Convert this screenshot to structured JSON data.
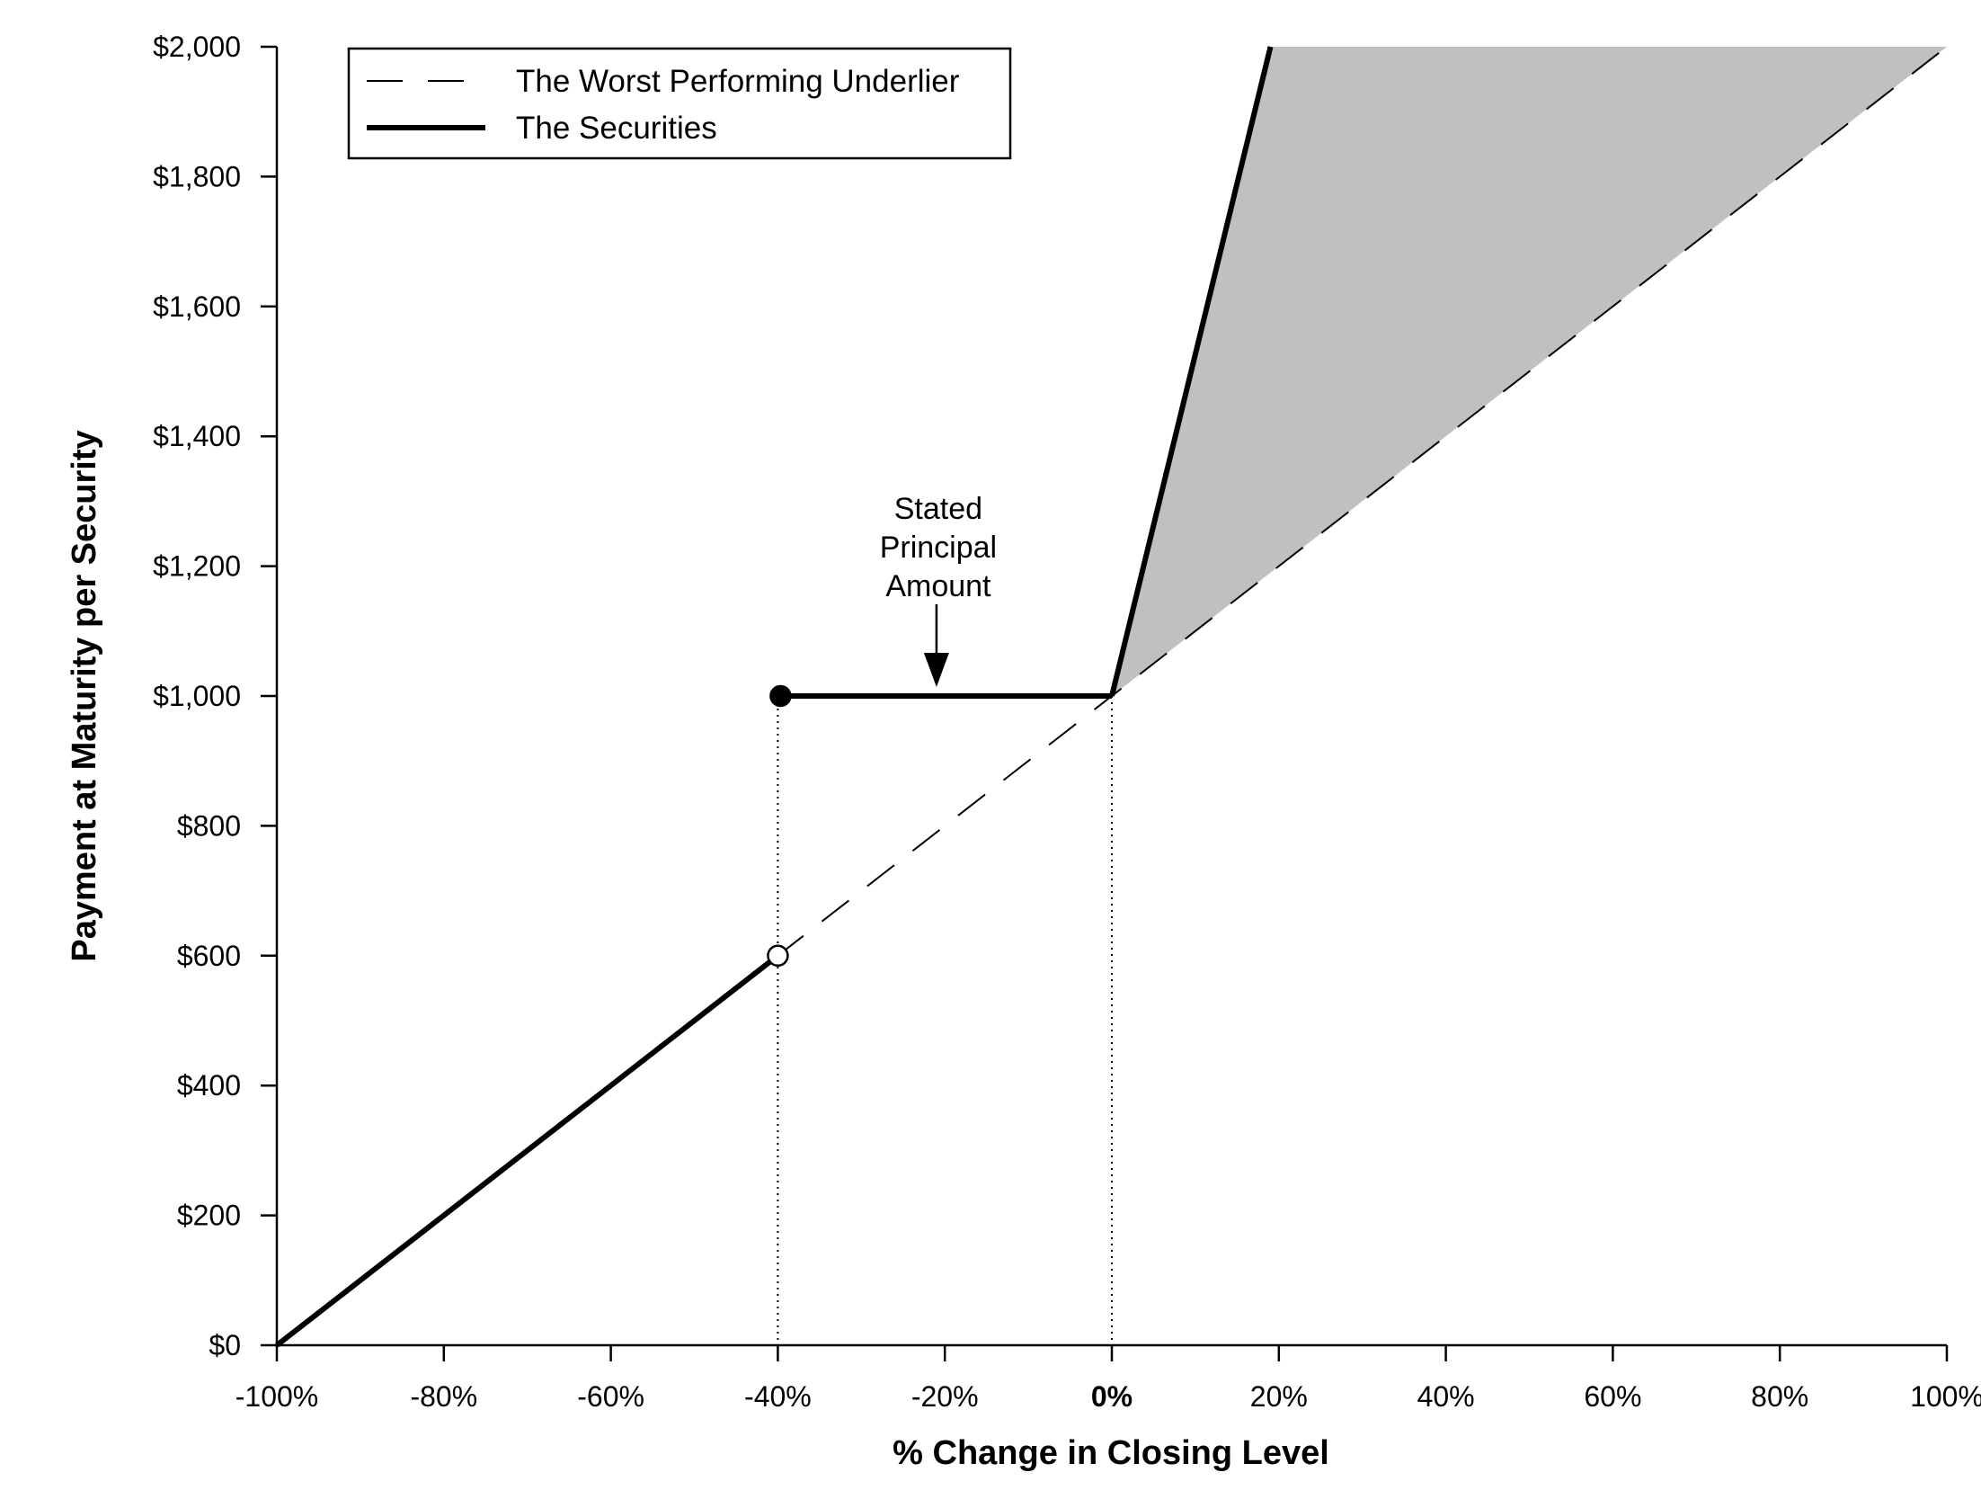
{
  "chart_data": {
    "type": "line",
    "title": "",
    "xlabel": "% Change in Closing Level",
    "ylabel": "Payment at Maturity per Security",
    "xlim": [
      -100,
      100
    ],
    "ylim": [
      0,
      2000
    ],
    "grid": false,
    "x_ticks": [
      -100,
      -80,
      -60,
      -40,
      -20,
      0,
      20,
      40,
      60,
      80,
      100
    ],
    "x_tick_labels": [
      "-100%",
      "-80%",
      "-60%",
      "-40%",
      "-20%",
      "0%",
      "20%",
      "40%",
      "60%",
      "80%",
      "100%"
    ],
    "y_ticks": [
      0,
      200,
      400,
      600,
      800,
      1000,
      1200,
      1400,
      1600,
      1800,
      2000
    ],
    "y_tick_labels": [
      "$0",
      "$200",
      "$400",
      "$600",
      "$800",
      "$1,000",
      "$1,200",
      "$1,400",
      "$1,600",
      "$1,800",
      "$2,000"
    ],
    "legend": {
      "placement": "top-left",
      "entries": [
        {
          "label": "The Worst Performing Underlier",
          "style": "dashed"
        },
        {
          "label": "The Securities",
          "style": "solid-thick"
        }
      ]
    },
    "series": [
      {
        "name": "The Worst Performing Underlier",
        "style": "dashed",
        "x": [
          -100,
          100
        ],
        "y": [
          0,
          2000
        ]
      },
      {
        "name": "The Securities",
        "style": "solid-thick",
        "segments": [
          {
            "x": [
              -100,
              -40
            ],
            "y": [
              0,
              600
            ]
          },
          {
            "x": [
              -40,
              0
            ],
            "y": [
              1000,
              1000
            ]
          },
          {
            "x": [
              0,
              19
            ],
            "y": [
              1000,
              2000
            ]
          }
        ]
      }
    ],
    "shaded_region": {
      "color": "#c0c0c0",
      "points": [
        [
          0,
          1000
        ],
        [
          19,
          2000
        ],
        [
          100,
          2000
        ]
      ]
    },
    "markers": [
      {
        "x": -40,
        "y": 1000,
        "fill": "filled"
      },
      {
        "x": -40,
        "y": 600,
        "fill": "open"
      }
    ],
    "reference_lines": [
      {
        "x": -40,
        "style": "dotted"
      },
      {
        "x": 0,
        "style": "dotted"
      }
    ],
    "annotations": [
      {
        "lines": [
          "Stated",
          "Principal",
          "Amount"
        ],
        "arrow_to": {
          "x": -21,
          "y": 1000
        }
      }
    ],
    "colors": {
      "line": "#000000",
      "shade": "#c0c0c0",
      "background": "#ffffff"
    }
  }
}
